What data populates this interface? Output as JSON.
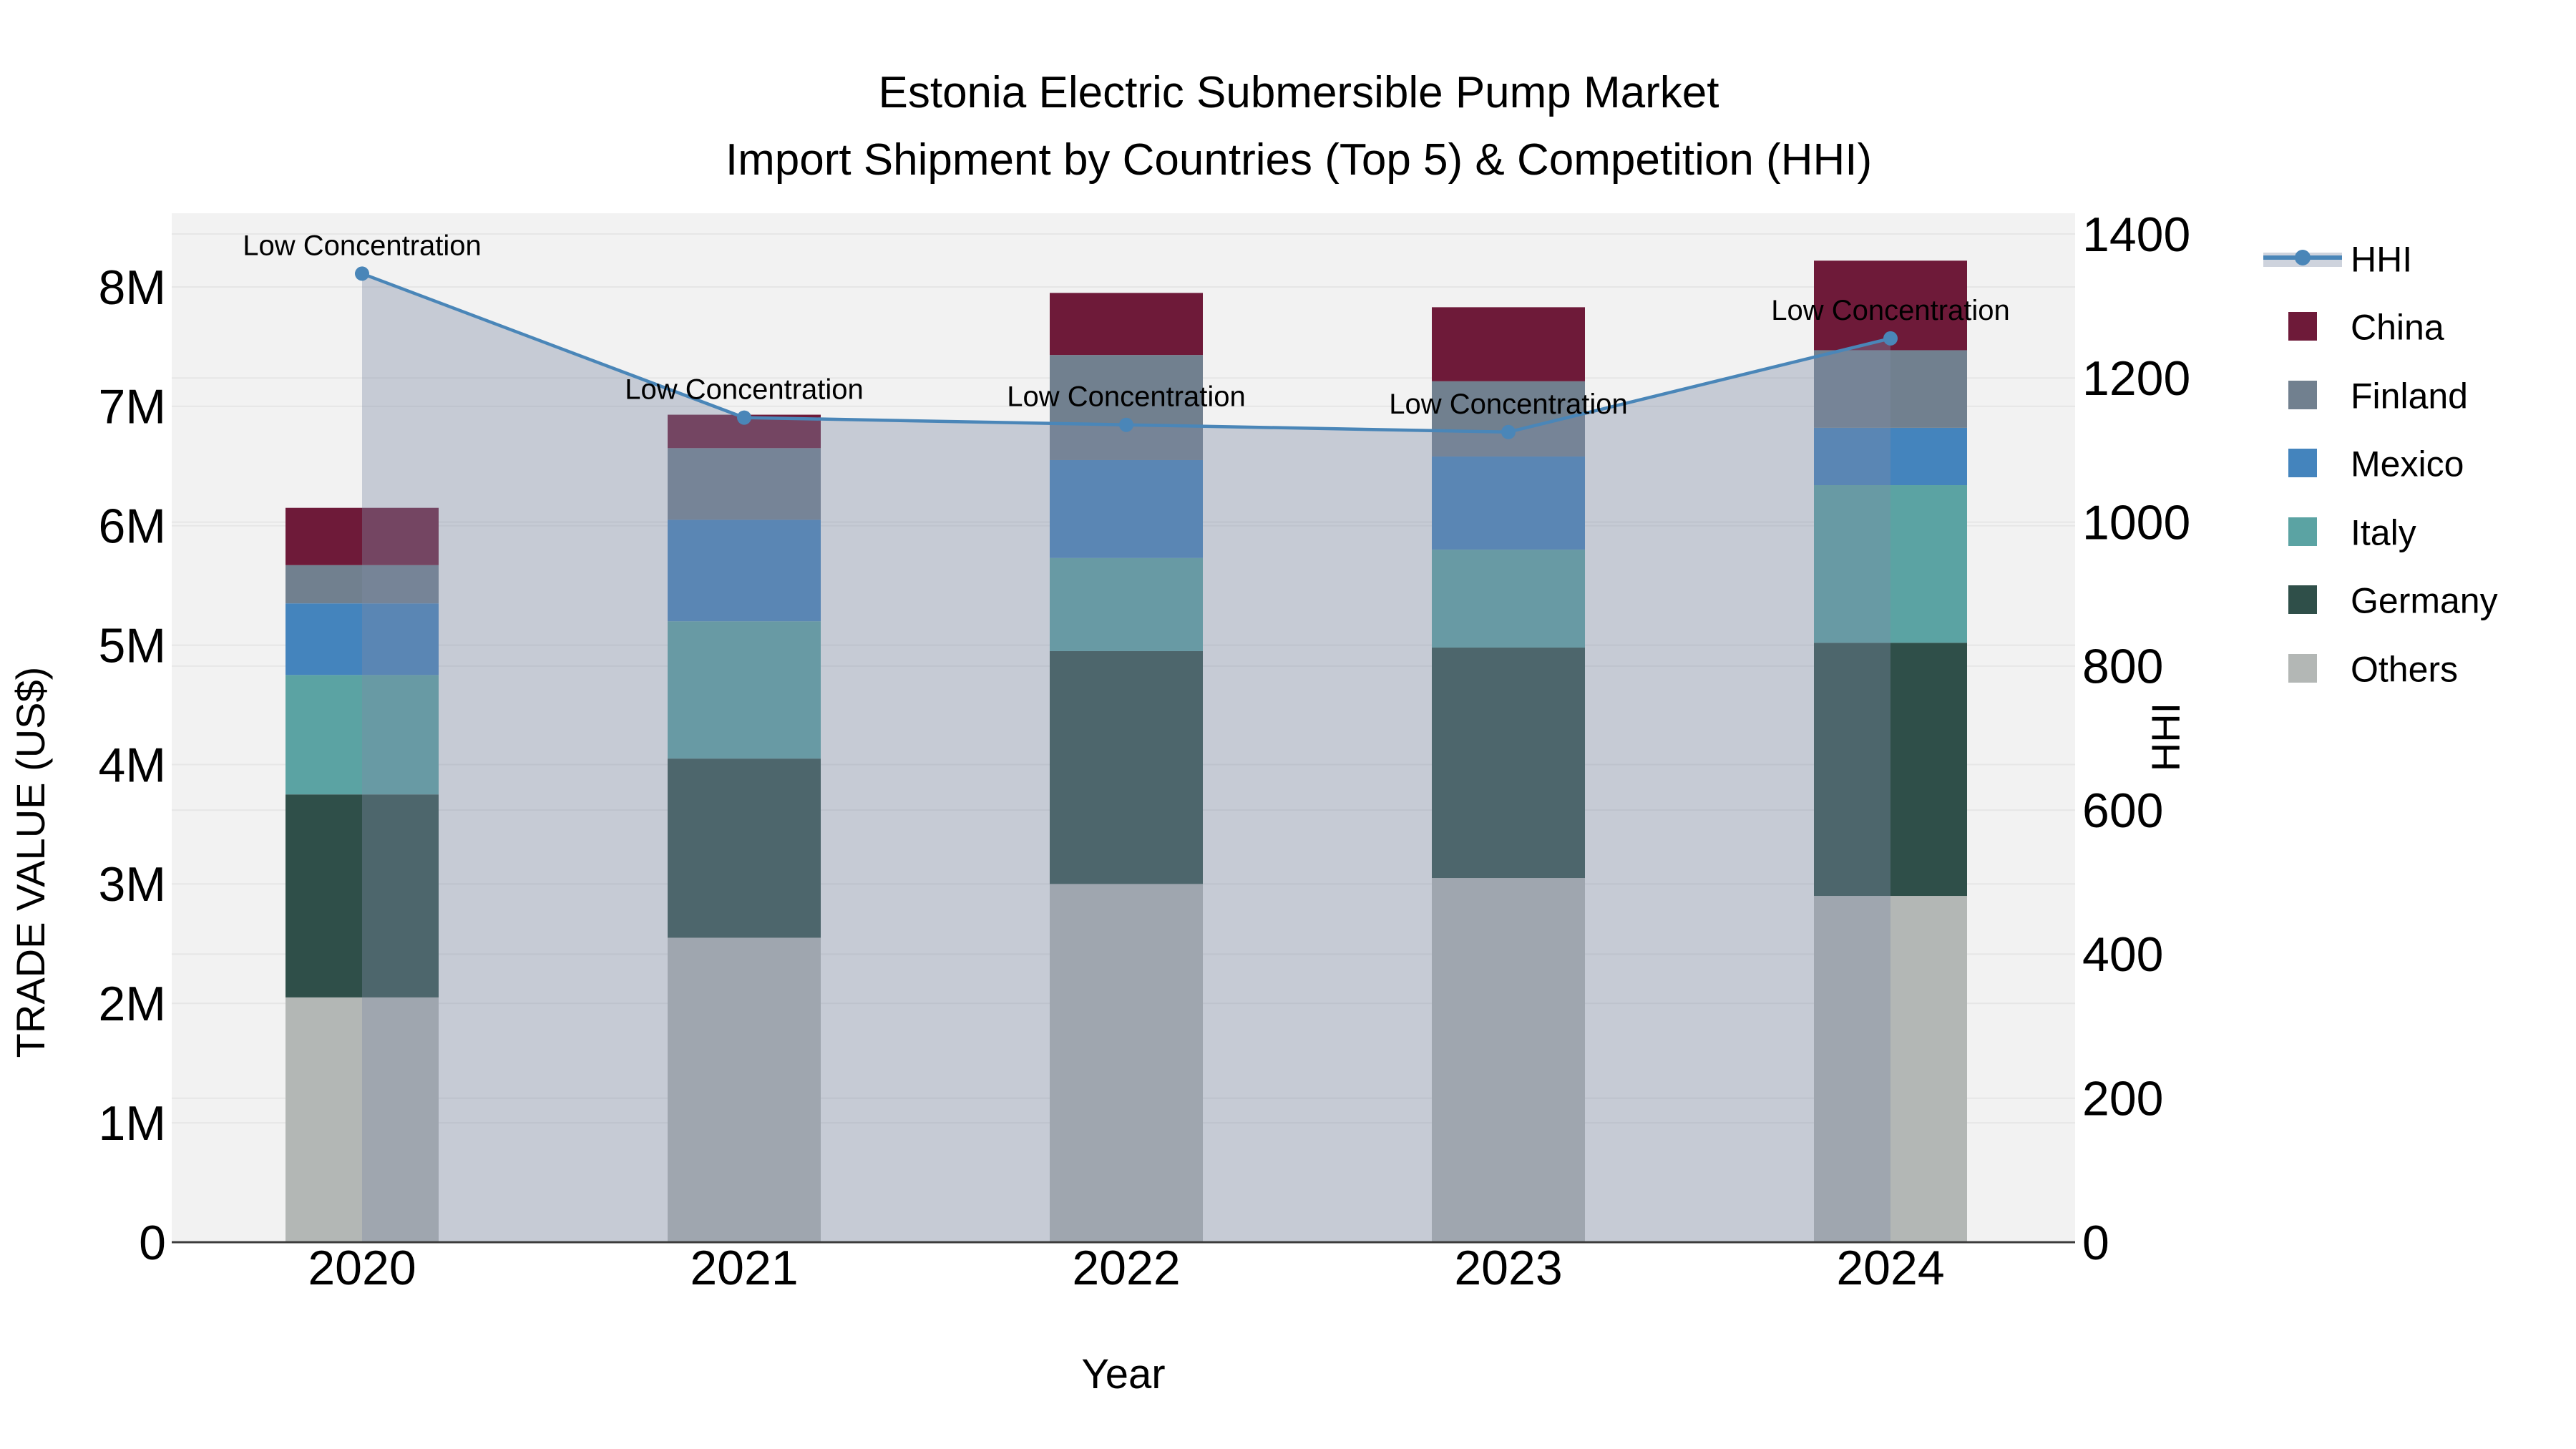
{
  "chart_data": {
    "type": "bar+line",
    "title": [
      "Estonia Electric Submersible Pump Market",
      "Import Shipment by Countries (Top 5) & Competition (HHI)"
    ],
    "xlabel": "Year",
    "ylabel_left": "TRADE VALUE (US$)",
    "ylabel_right": "HHI",
    "categories": [
      "2020",
      "2021",
      "2022",
      "2023",
      "2024"
    ],
    "stack_series_bottom_to_top": [
      {
        "name": "Others",
        "color": "#B3B7B5",
        "values_million_usd": [
          2.05,
          2.55,
          3.0,
          3.05,
          2.9
        ]
      },
      {
        "name": "Germany",
        "color": "#2F4F49",
        "values_million_usd": [
          1.7,
          1.5,
          1.95,
          1.93,
          2.12
        ]
      },
      {
        "name": "Italy",
        "color": "#5BA3A3",
        "values_million_usd": [
          1.0,
          1.15,
          0.78,
          0.82,
          1.32
        ]
      },
      {
        "name": "Mexico",
        "color": "#4484BD",
        "values_million_usd": [
          0.6,
          0.85,
          0.82,
          0.78,
          0.48
        ]
      },
      {
        "name": "Finland",
        "color": "#71808F",
        "values_million_usd": [
          0.32,
          0.6,
          0.88,
          0.63,
          0.65
        ]
      },
      {
        "name": "China",
        "color": "#6E1A39",
        "values_million_usd": [
          0.48,
          0.28,
          0.52,
          0.62,
          0.75
        ]
      }
    ],
    "line_series": {
      "name": "HHI",
      "color": "#4A86B8",
      "area_fill": "rgba(125,140,165,0.38)",
      "values": [
        1345,
        1145,
        1135,
        1125,
        1255
      ],
      "annotations": [
        "Low Concentration",
        "Low Concentration",
        "Low Concentration",
        "Low Concentration",
        "Low Concentration"
      ]
    },
    "left_axis": {
      "ticks": [
        "0",
        "1M",
        "2M",
        "3M",
        "4M",
        "5M",
        "6M",
        "7M",
        "8M"
      ],
      "max_million_usd": 8
    },
    "right_axis": {
      "ticks": [
        "0",
        "200",
        "400",
        "600",
        "800",
        "1000",
        "1200",
        "1400"
      ],
      "max": 1400
    },
    "legend": {
      "items": [
        "HHI",
        "China",
        "Finland",
        "Mexico",
        "Italy",
        "Germany",
        "Others"
      ]
    },
    "colors": {
      "plot_bg": "#F2F2F2",
      "grid": "#E6E6E6",
      "spine": "#3C3C3C",
      "text": "#000000"
    }
  }
}
